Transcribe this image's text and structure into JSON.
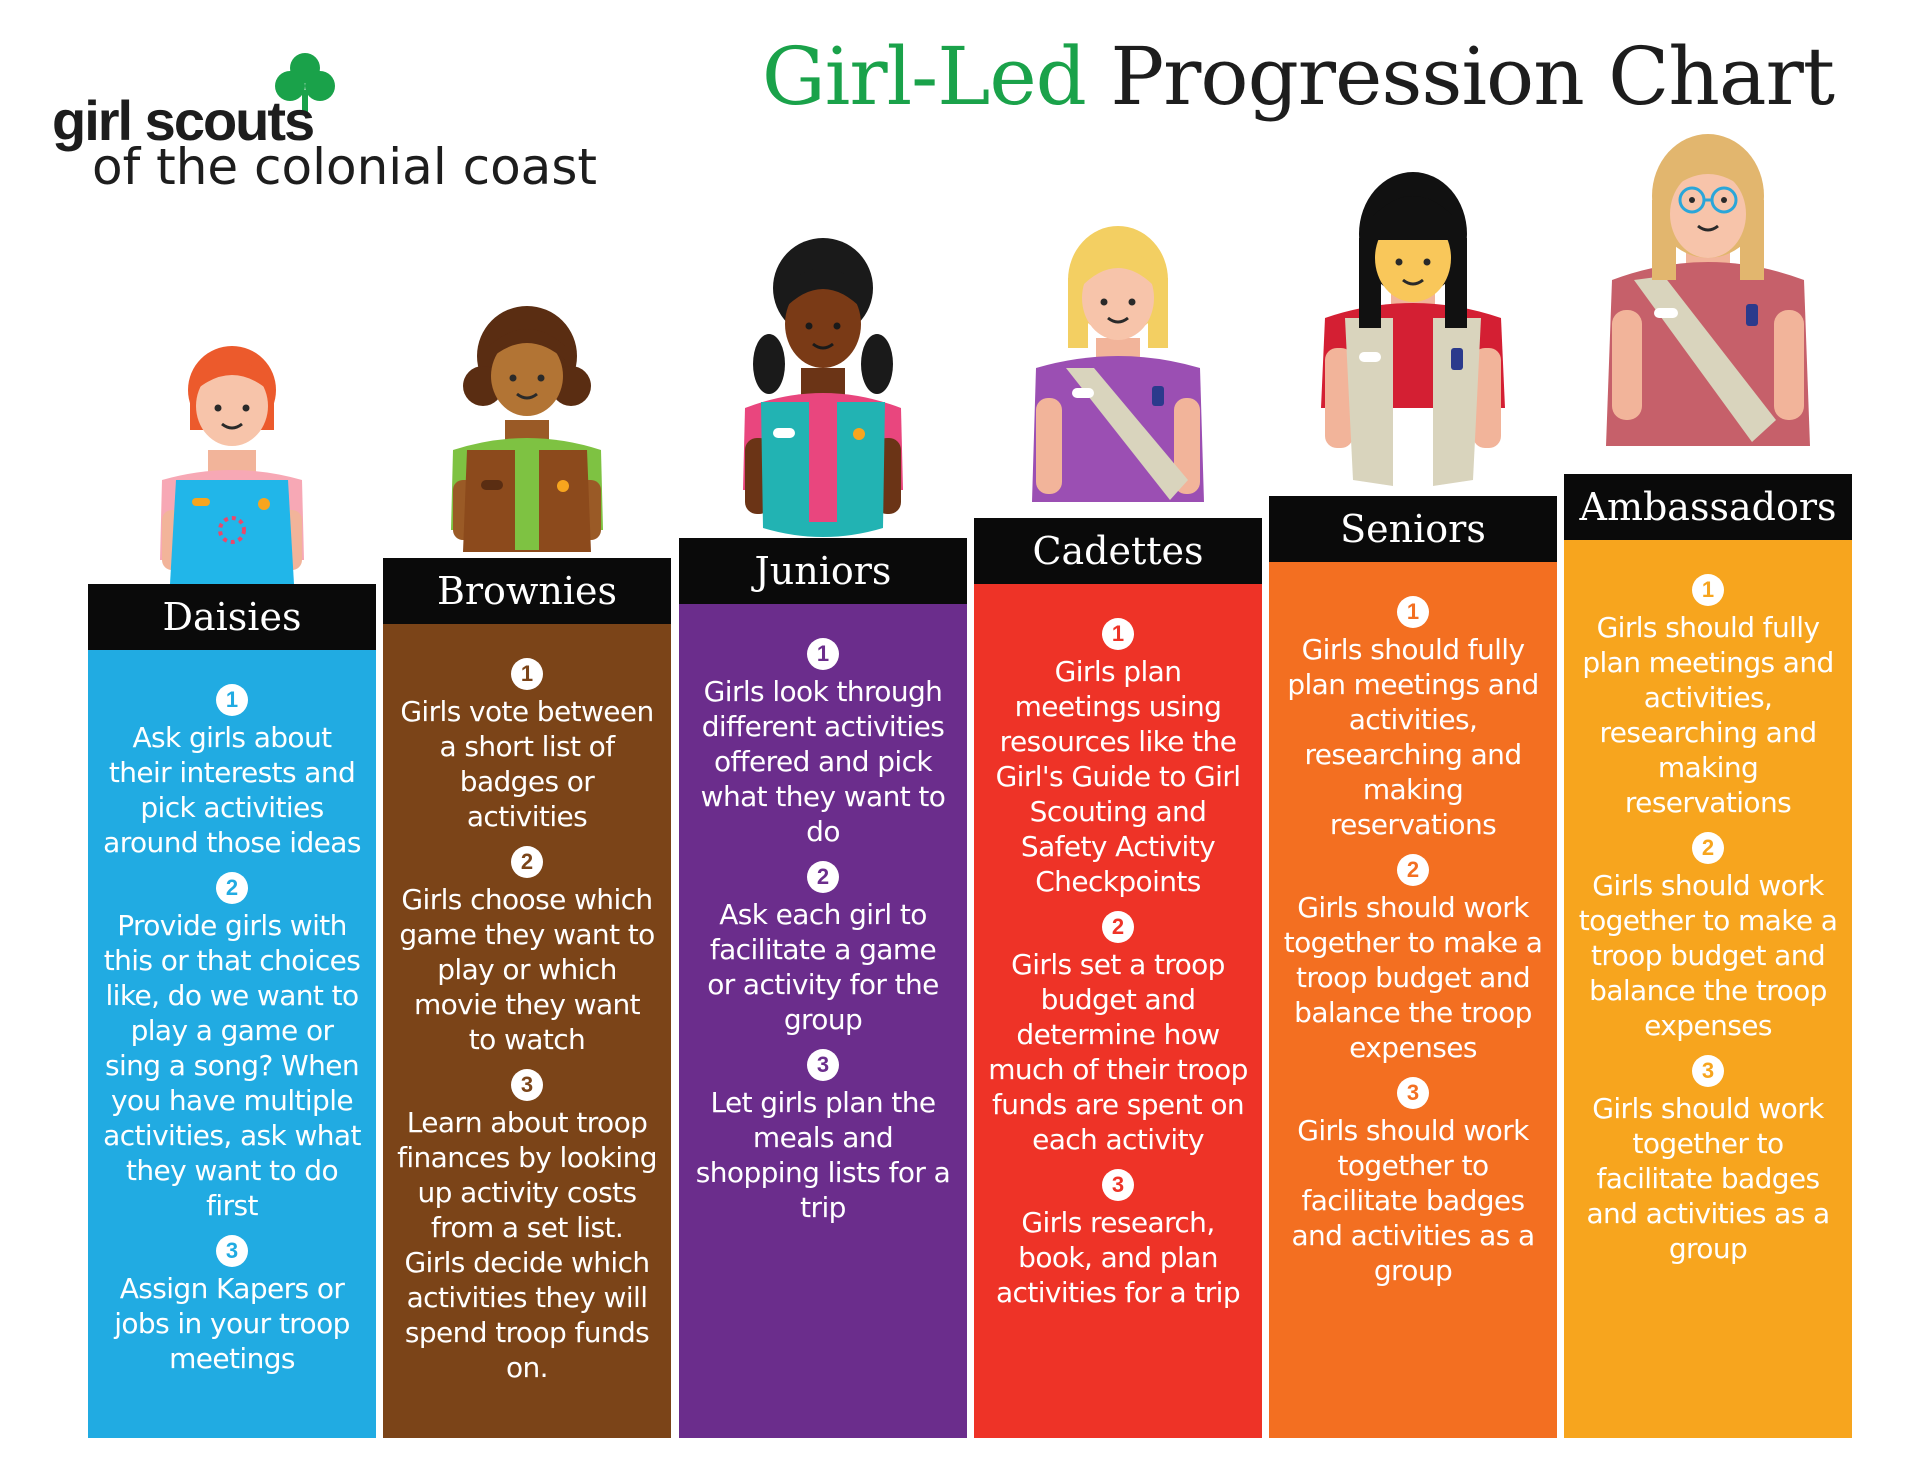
{
  "logo": {
    "wordmark": "girl scouts",
    "tagline": "of the colonial coast"
  },
  "title": {
    "green": "Girl-Led",
    "dark": "Progression Chart"
  },
  "colors": {
    "daisies": "#21abe2",
    "brownies": "#7b4418",
    "juniors": "#6b2d8c",
    "cadettes": "#ee3327",
    "seniors": "#f36f21",
    "ambassadors": "#f7a51e",
    "title_green": "#1aa24a"
  },
  "levels": [
    {
      "name": "Daisies",
      "items": [
        {
          "n": "1",
          "text": "Ask girls about their interests and pick activities around those ideas"
        },
        {
          "n": "2",
          "text": "Provide girls with this or that choices like, do we want to play a game or sing a song? When you have multiple activities, ask what they want to do first"
        },
        {
          "n": "3",
          "text": "Assign Kapers or jobs in your troop meetings"
        }
      ]
    },
    {
      "name": "Brownies",
      "items": [
        {
          "n": "1",
          "text": "Girls vote between a short list of badges or activities"
        },
        {
          "n": "2",
          "text": "Girls choose which game they want to play or which movie they want to watch"
        },
        {
          "n": "3",
          "text": "Learn about troop finances by looking up activity costs from a set list. Girls decide which activities they will spend troop funds on."
        }
      ]
    },
    {
      "name": "Juniors",
      "items": [
        {
          "n": "1",
          "text": "Girls look through different activities offered and pick what they want to do"
        },
        {
          "n": "2",
          "text": "Ask each girl to facilitate a game or activity for the group"
        },
        {
          "n": "3",
          "text": "Let girls plan the meals and shopping lists for a trip"
        }
      ]
    },
    {
      "name": "Cadettes",
      "items": [
        {
          "n": "1",
          "text": "Girls plan meetings using resources like the Girl's Guide to Girl Scouting and Safety Activity Checkpoints"
        },
        {
          "n": "2",
          "text": "Girls set a troop budget and determine how much of their troop funds are spent on each activity"
        },
        {
          "n": "3",
          "text": "Girls research, book, and plan activities for a trip"
        }
      ]
    },
    {
      "name": "Seniors",
      "items": [
        {
          "n": "1",
          "text": "Girls should fully plan meetings and activities, researching and making reservations"
        },
        {
          "n": "2",
          "text": "Girls should work together to make a troop budget and balance the troop expenses"
        },
        {
          "n": "3",
          "text": "Girls should work together to facilitate badges and activities as a group"
        }
      ]
    },
    {
      "name": "Ambassadors",
      "items": [
        {
          "n": "1",
          "text": "Girls should fully plan meetings and activities, researching and making reservations"
        },
        {
          "n": "2",
          "text": "Girls should work together to make a troop budget and balance the troop expenses"
        },
        {
          "n": "3",
          "text": "Girls should work together to facilitate badges and activities as a group"
        }
      ]
    }
  ]
}
